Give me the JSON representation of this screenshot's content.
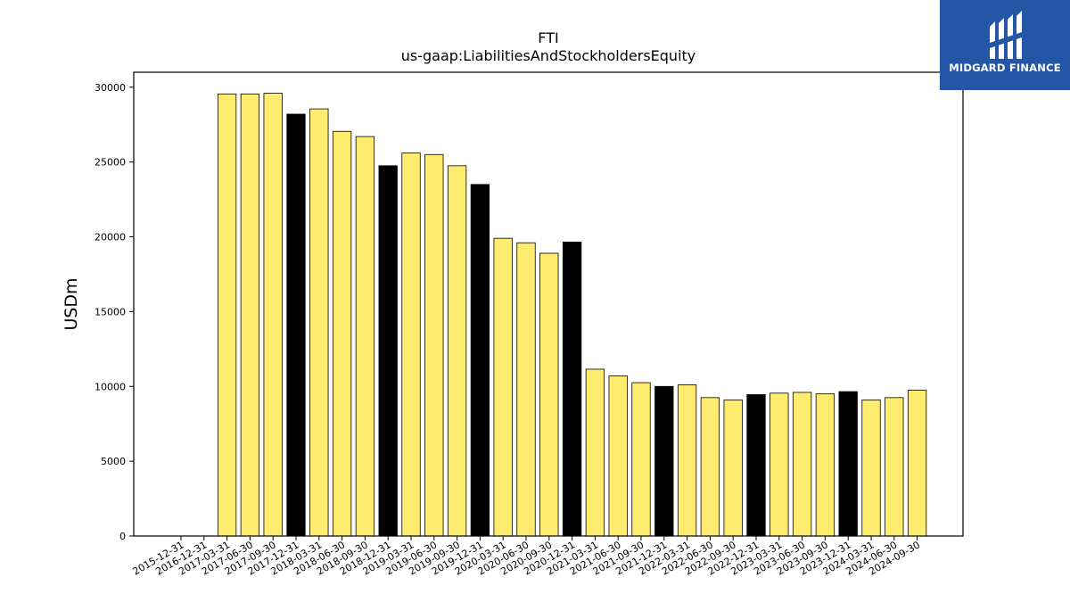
{
  "chart_data": {
    "type": "bar",
    "title": "FTI",
    "subtitle": "us-gaap:LiabilitiesAndStockholdersEquity",
    "xlabel": "",
    "ylabel": "USDm",
    "ylim": [
      0,
      31000
    ],
    "yticks": [
      0,
      5000,
      10000,
      15000,
      20000,
      25000,
      30000
    ],
    "ytick_labels": [
      "0",
      "5000",
      "10000",
      "15000",
      "20000",
      "25000",
      "30000"
    ],
    "grid": false,
    "colors": {
      "quarter": "#ffec6e",
      "year_end": "#000000",
      "edge": "#000000"
    },
    "categories": [
      "2015-12-31",
      "2016-12-31",
      "2017-03-31",
      "2017-06-30",
      "2017-09-30",
      "2017-12-31",
      "2018-03-31",
      "2018-06-30",
      "2018-09-30",
      "2018-12-31",
      "2019-03-31",
      "2019-06-30",
      "2019-09-30",
      "2019-12-31",
      "2020-03-31",
      "2020-06-30",
      "2020-09-30",
      "2020-12-31",
      "2021-03-31",
      "2021-06-30",
      "2021-09-30",
      "2021-12-31",
      "2022-03-31",
      "2022-06-30",
      "2022-09-30",
      "2022-12-31",
      "2023-03-31",
      "2023-06-30",
      "2023-09-30",
      "2023-12-31",
      "2024-03-31",
      "2024-06-30",
      "2024-09-30"
    ],
    "values": [
      null,
      null,
      29550,
      29550,
      29600,
      28200,
      28550,
      27050,
      26700,
      24750,
      25600,
      25500,
      24750,
      23500,
      19900,
      19600,
      18900,
      19650,
      11150,
      10700,
      10250,
      10000,
      10100,
      9250,
      9100,
      9450,
      9550,
      9600,
      9500,
      9650,
      9100,
      9250,
      9750
    ],
    "year_end": [
      false,
      false,
      false,
      false,
      false,
      true,
      false,
      false,
      false,
      true,
      false,
      false,
      false,
      true,
      false,
      false,
      false,
      true,
      false,
      false,
      false,
      true,
      false,
      false,
      false,
      true,
      false,
      false,
      false,
      true,
      false,
      false,
      false
    ]
  },
  "logo": {
    "text": "MIDGARD FINANCE",
    "icon": "midgard-logo-icon",
    "background": "#2456a6"
  }
}
